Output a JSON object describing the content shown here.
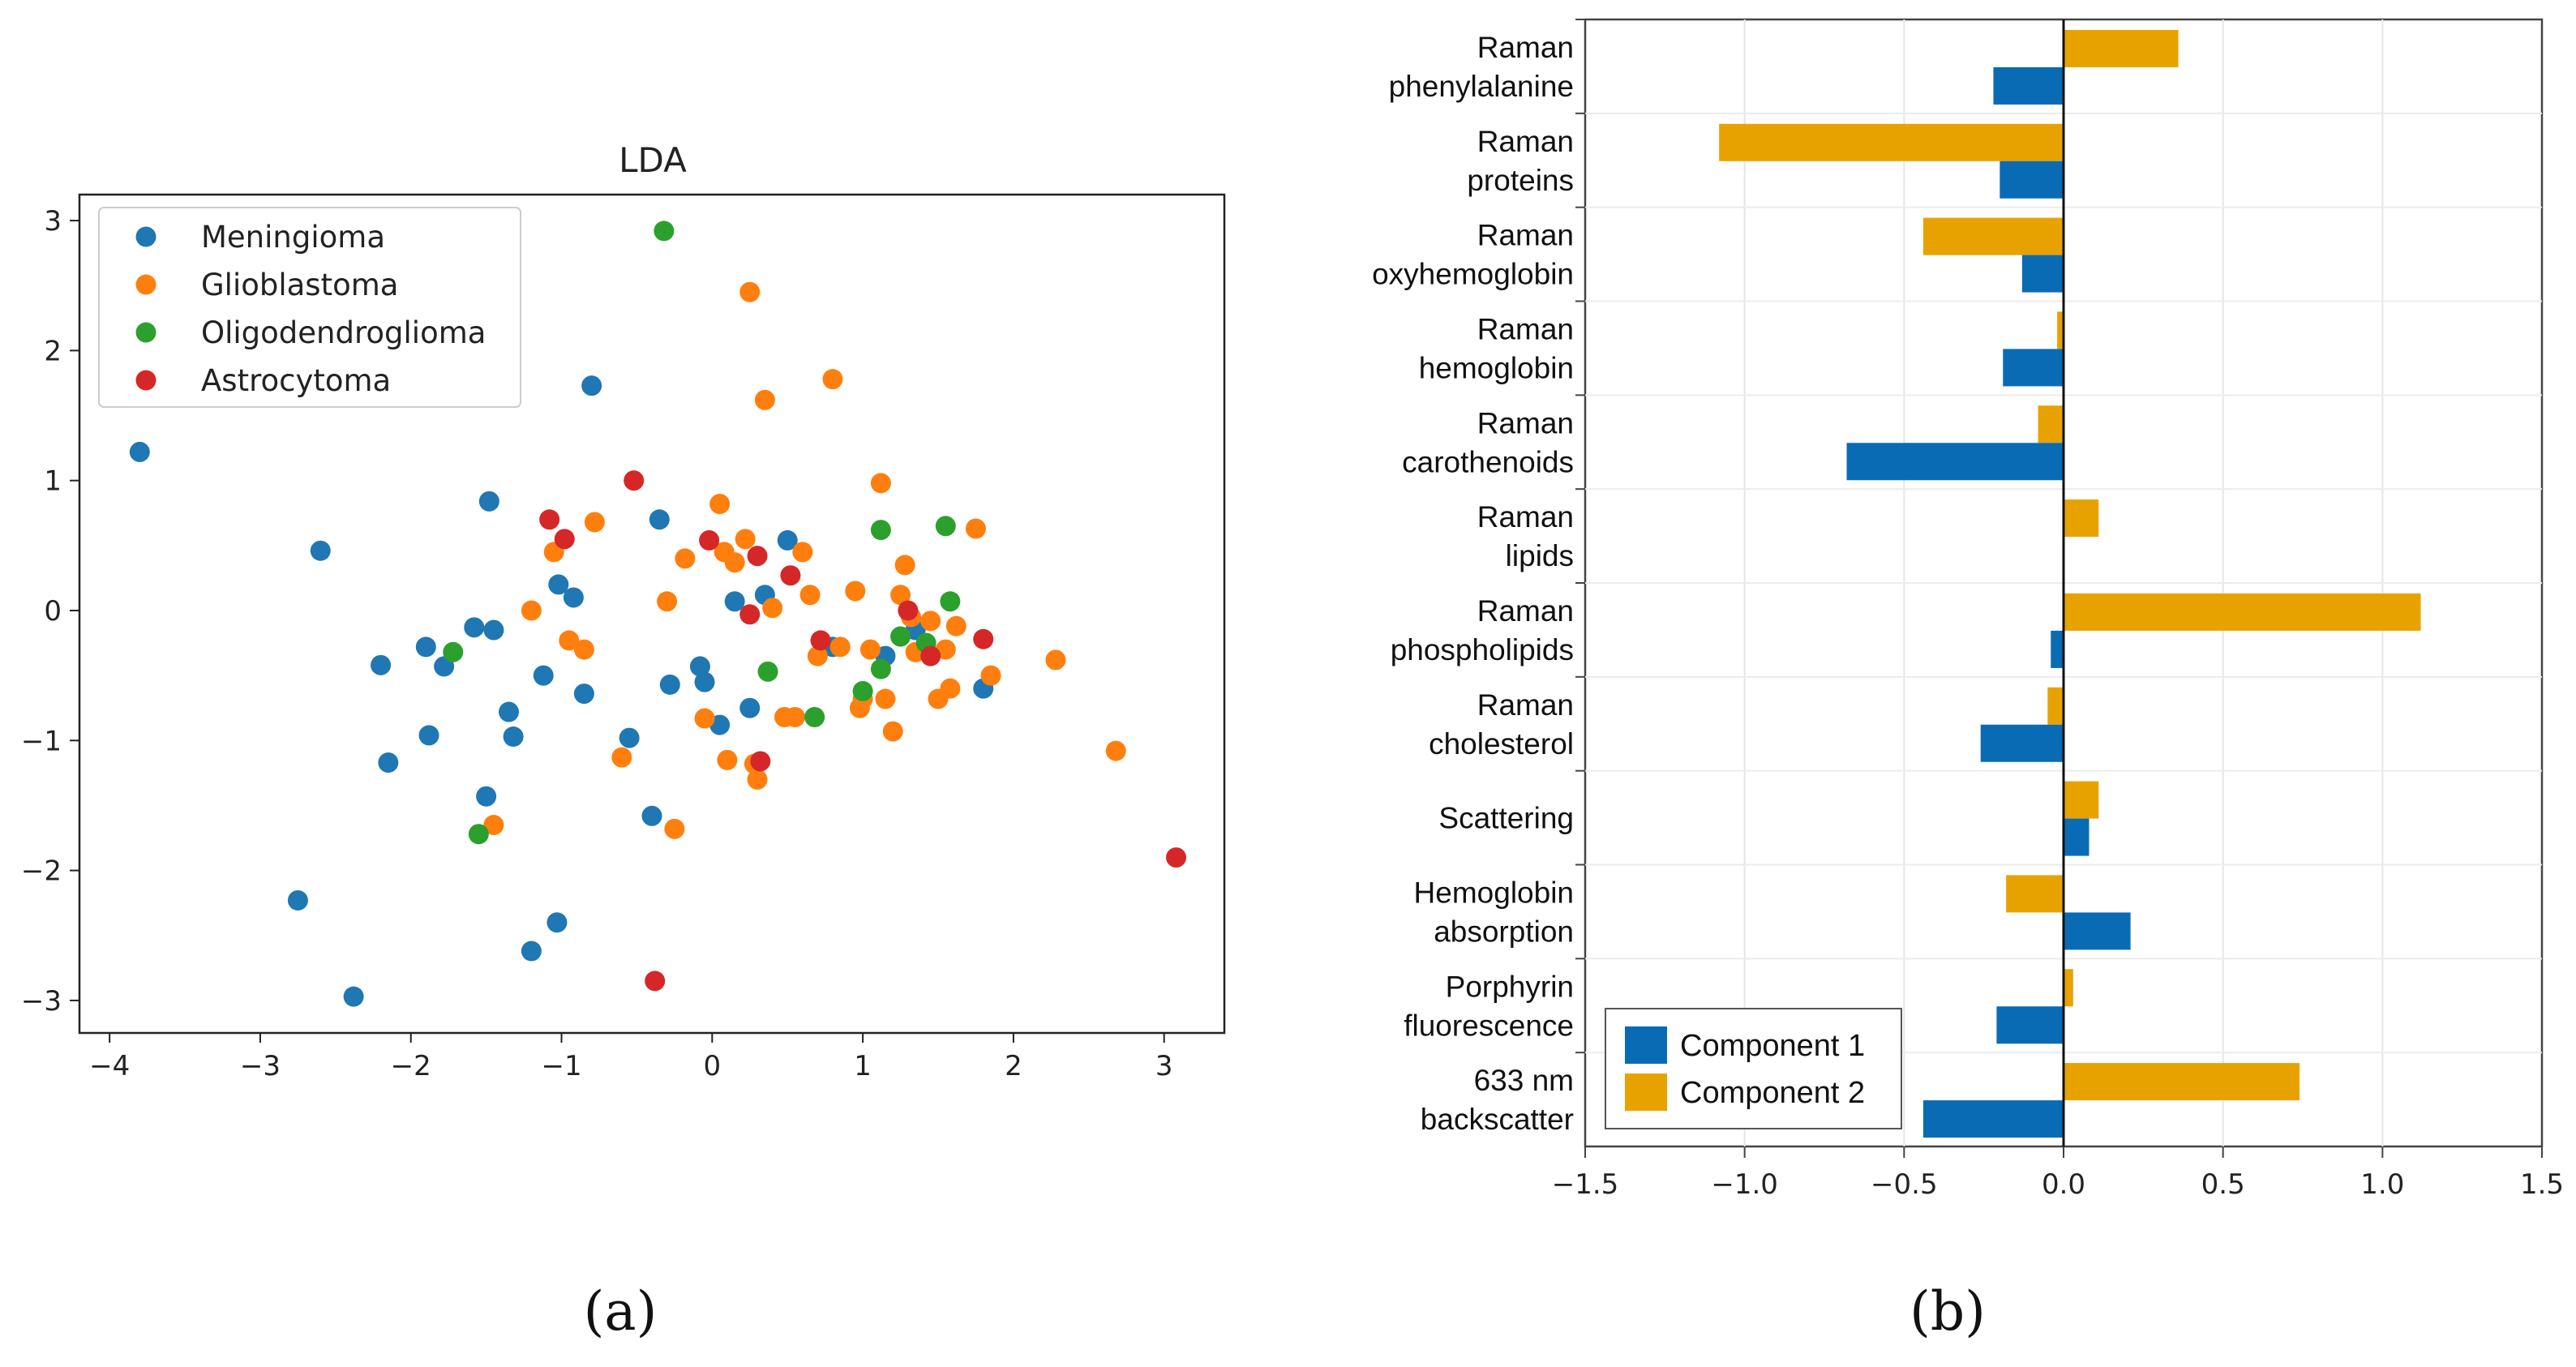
{
  "panels": {
    "a_label": "(a)",
    "b_label": "(b)"
  },
  "chart_data": [
    {
      "type": "scatter",
      "title": "LDA",
      "xlabel": "",
      "ylabel": "",
      "xlim": [
        -4.2,
        3.4
      ],
      "ylim": [
        -3.25,
        3.2
      ],
      "xticks": [
        -4,
        -3,
        -2,
        -1,
        0,
        1,
        2,
        3
      ],
      "yticks": [
        -3,
        -2,
        -1,
        0,
        1,
        2,
        3
      ],
      "legend_position": "top-left",
      "series": [
        {
          "name": "Meningioma",
          "color": "#1f77b4",
          "points": [
            [
              -3.8,
              1.22
            ],
            [
              -2.6,
              0.46
            ],
            [
              -2.2,
              -0.42
            ],
            [
              -2.15,
              -1.17
            ],
            [
              -1.9,
              -0.28
            ],
            [
              -1.88,
              -0.96
            ],
            [
              -1.78,
              -0.43
            ],
            [
              -1.58,
              -0.13
            ],
            [
              -1.48,
              0.84
            ],
            [
              -1.45,
              -0.15
            ],
            [
              -1.5,
              -1.43
            ],
            [
              -1.35,
              -0.78
            ],
            [
              -1.32,
              -0.97
            ],
            [
              -1.2,
              -2.62
            ],
            [
              -1.12,
              -0.5
            ],
            [
              -1.02,
              0.2
            ],
            [
              -0.92,
              0.1
            ],
            [
              -0.85,
              -0.64
            ],
            [
              -0.8,
              1.73
            ],
            [
              -0.55,
              -0.98
            ],
            [
              -0.4,
              -1.58
            ],
            [
              -0.35,
              0.7
            ],
            [
              -0.28,
              -0.57
            ],
            [
              -0.08,
              -0.43
            ],
            [
              -0.05,
              -0.55
            ],
            [
              0.05,
              -0.88
            ],
            [
              0.15,
              0.07
            ],
            [
              0.25,
              -0.75
            ],
            [
              0.35,
              0.12
            ],
            [
              0.5,
              0.54
            ],
            [
              0.8,
              -0.28
            ],
            [
              1.15,
              -0.35
            ],
            [
              1.35,
              -0.15
            ],
            [
              1.8,
              -0.6
            ],
            [
              -2.75,
              -2.23
            ],
            [
              -2.38,
              -2.97
            ],
            [
              -1.03,
              -2.4
            ]
          ]
        },
        {
          "name": "Glioblastoma",
          "color": "#ff7f0e",
          "points": [
            [
              -1.2,
              0.0
            ],
            [
              -1.05,
              0.45
            ],
            [
              -0.95,
              -0.23
            ],
            [
              -0.85,
              -0.3
            ],
            [
              -0.78,
              0.68
            ],
            [
              -0.6,
              -1.13
            ],
            [
              -0.3,
              0.07
            ],
            [
              -0.25,
              -1.68
            ],
            [
              -0.18,
              0.4
            ],
            [
              -0.05,
              -0.83
            ],
            [
              0.05,
              0.82
            ],
            [
              0.08,
              0.45
            ],
            [
              0.1,
              -1.15
            ],
            [
              0.15,
              0.37
            ],
            [
              0.22,
              0.55
            ],
            [
              0.25,
              2.45
            ],
            [
              0.28,
              -1.18
            ],
            [
              0.3,
              -1.3
            ],
            [
              0.35,
              1.62
            ],
            [
              0.4,
              0.02
            ],
            [
              0.48,
              -0.82
            ],
            [
              0.55,
              -0.82
            ],
            [
              0.6,
              0.45
            ],
            [
              0.65,
              0.12
            ],
            [
              0.7,
              -0.35
            ],
            [
              0.8,
              1.78
            ],
            [
              0.85,
              -0.28
            ],
            [
              0.95,
              0.15
            ],
            [
              0.98,
              -0.75
            ],
            [
              1.0,
              -0.68
            ],
            [
              1.05,
              -0.3
            ],
            [
              1.12,
              0.98
            ],
            [
              1.15,
              -0.68
            ],
            [
              1.2,
              -0.93
            ],
            [
              1.25,
              0.12
            ],
            [
              1.28,
              0.35
            ],
            [
              1.32,
              -0.05
            ],
            [
              1.35,
              -0.32
            ],
            [
              1.45,
              -0.08
            ],
            [
              1.5,
              -0.68
            ],
            [
              1.55,
              -0.3
            ],
            [
              1.58,
              -0.6
            ],
            [
              1.62,
              -0.12
            ],
            [
              1.75,
              0.63
            ],
            [
              1.85,
              -0.5
            ],
            [
              2.28,
              -0.38
            ],
            [
              2.68,
              -1.08
            ],
            [
              -1.45,
              -1.65
            ]
          ]
        },
        {
          "name": "Oligodendroglioma",
          "color": "#2ca02c",
          "points": [
            [
              -0.32,
              2.92
            ],
            [
              -1.72,
              -0.32
            ],
            [
              -1.55,
              -1.72
            ],
            [
              0.37,
              -0.47
            ],
            [
              0.68,
              -0.82
            ],
            [
              1.0,
              -0.62
            ],
            [
              1.12,
              -0.45
            ],
            [
              1.12,
              0.62
            ],
            [
              1.25,
              -0.2
            ],
            [
              1.42,
              -0.25
            ],
            [
              1.55,
              0.65
            ],
            [
              1.58,
              0.07
            ]
          ]
        },
        {
          "name": "Astrocytoma",
          "color": "#d62728",
          "points": [
            [
              -1.08,
              0.7
            ],
            [
              -0.98,
              0.55
            ],
            [
              -0.52,
              1.0
            ],
            [
              -0.02,
              0.54
            ],
            [
              0.25,
              -0.03
            ],
            [
              0.3,
              0.42
            ],
            [
              0.32,
              -1.16
            ],
            [
              0.52,
              0.27
            ],
            [
              0.72,
              -0.23
            ],
            [
              1.3,
              0.0
            ],
            [
              1.45,
              -0.35
            ],
            [
              1.8,
              -0.22
            ],
            [
              3.08,
              -1.9
            ],
            [
              -0.38,
              -2.85
            ]
          ]
        }
      ]
    },
    {
      "type": "bar",
      "orientation": "horizontal",
      "title": "",
      "xlabel": "",
      "ylabel": "",
      "xlim": [
        -1.5,
        1.5
      ],
      "xticks": [
        "−1.5",
        "−1.0",
        "−0.5",
        "0.0",
        "0.5",
        "1.0",
        "1.5"
      ],
      "xtick_values": [
        -1.5,
        -1.0,
        -0.5,
        0.0,
        0.5,
        1.0,
        1.5
      ],
      "grid": true,
      "legend_position": "bottom-left",
      "categories": [
        [
          "Raman",
          "phenylalanine"
        ],
        [
          "Raman",
          "proteins"
        ],
        [
          "Raman",
          "oxyhemoglobin"
        ],
        [
          "Raman",
          "hemoglobin"
        ],
        [
          "Raman",
          "carothenoids"
        ],
        [
          "Raman",
          "lipids"
        ],
        [
          "Raman",
          "phospholipids"
        ],
        [
          "Raman",
          "cholesterol"
        ],
        [
          "Scattering"
        ],
        [
          "Hemoglobin",
          "absorption"
        ],
        [
          "Porphyrin",
          "fluorescence"
        ],
        [
          "633 nm",
          "backscatter"
        ]
      ],
      "series": [
        {
          "name": "Component 1",
          "color": "#0a6bb5",
          "values": [
            -0.22,
            -0.2,
            -0.13,
            -0.19,
            -0.68,
            0.0,
            -0.04,
            -0.26,
            0.08,
            0.21,
            -0.21,
            -0.44
          ]
        },
        {
          "name": "Component 2",
          "color": "#e8a200",
          "values": [
            0.36,
            -1.08,
            -0.44,
            -0.02,
            -0.08,
            0.11,
            1.12,
            -0.05,
            0.11,
            -0.18,
            0.03,
            0.74
          ]
        }
      ]
    }
  ]
}
